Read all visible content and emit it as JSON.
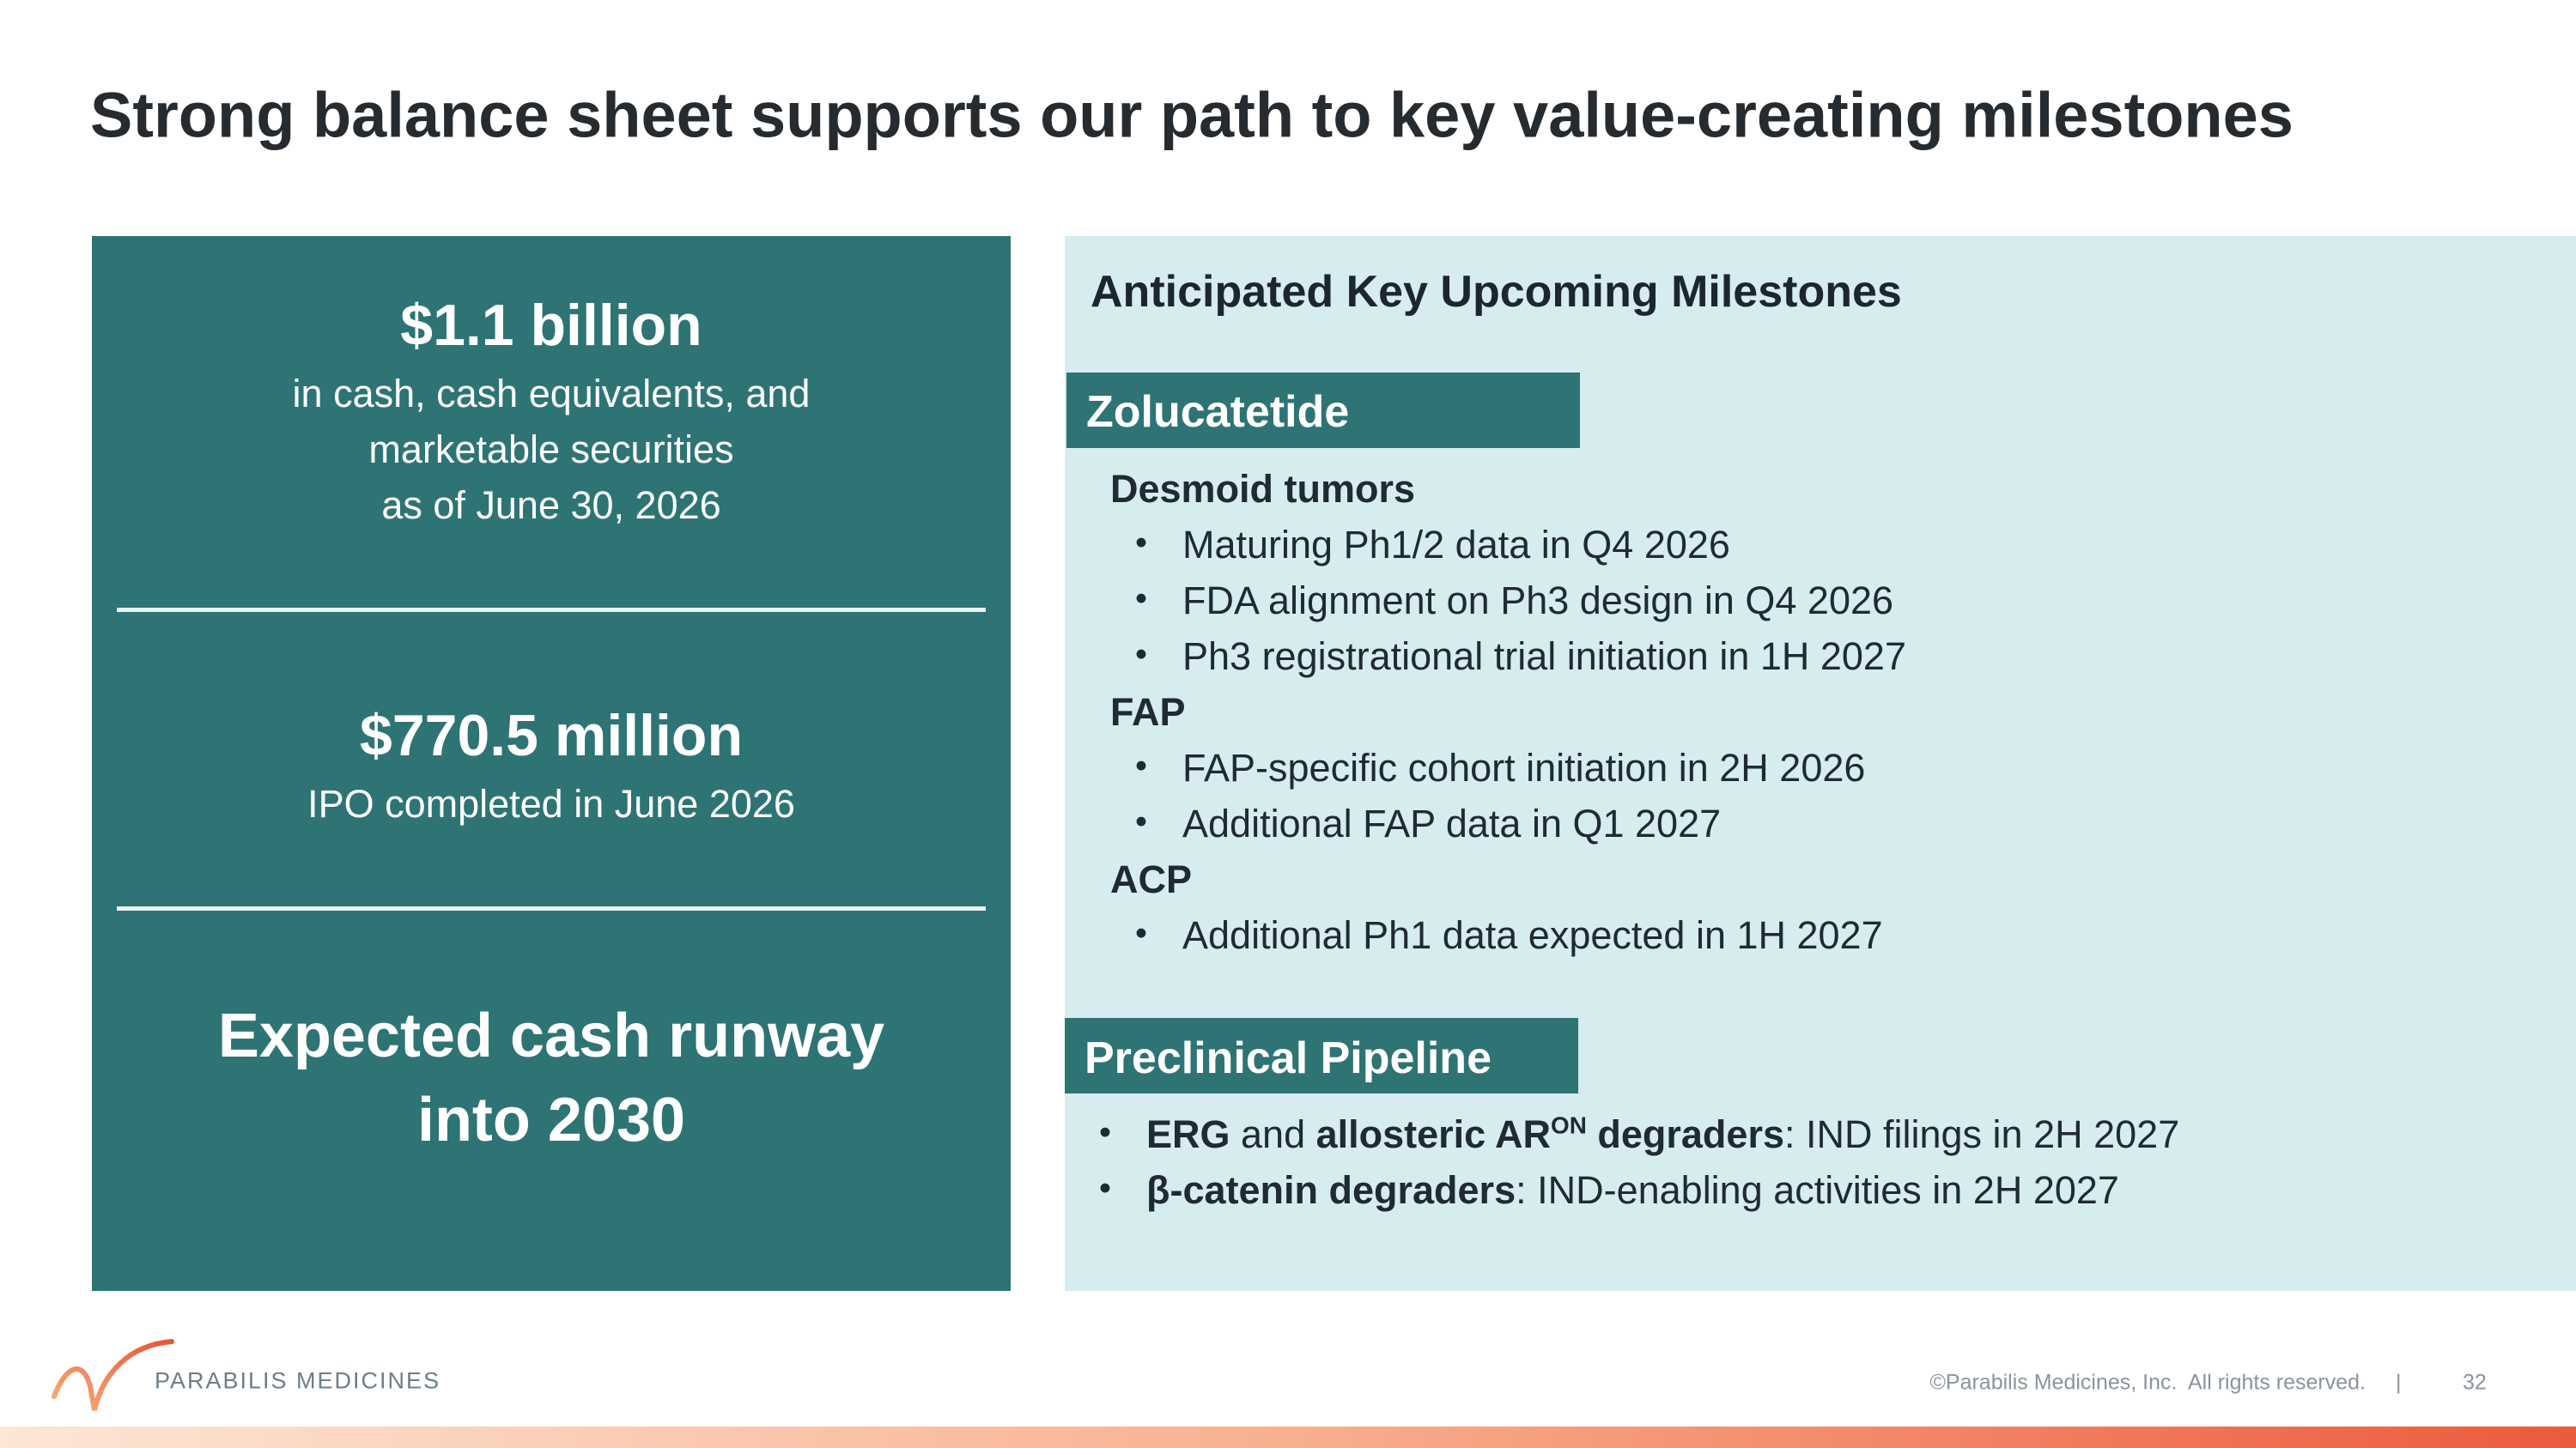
{
  "header": {
    "title": "Strong balance sheet supports our path to key value-creating milestones"
  },
  "summary": {
    "cash": {
      "value": "$1.1 billion",
      "lines": [
        "in cash, cash equivalents, and",
        "marketable securities",
        "as of June 30, 2026"
      ]
    },
    "ipo": {
      "value": "$770.5 million",
      "lines": [
        "IPO completed in June 2026"
      ]
    },
    "runway": {
      "lines": [
        "Expected cash runway",
        "into 2030"
      ]
    }
  },
  "milestones": {
    "heading": "Anticipated Key Upcoming Milestones",
    "zolucatetide": {
      "title": "Zolucatetide",
      "groups": [
        {
          "indication": "Desmoid tumors",
          "items": [
            "Maturing Ph1/2 data in Q4 2026",
            "FDA alignment on Ph3 design in Q4 2026",
            "Ph3 registrational trial initiation in 1H 2027"
          ]
        },
        {
          "indication": "FAP",
          "items": [
            "FAP-specific cohort initiation in 2H 2026",
            "Additional FAP data in Q1 2027"
          ]
        },
        {
          "indication": "ACP",
          "items": [
            "Additional Ph1 data expected in 1H 2027"
          ]
        }
      ]
    },
    "preclinical": {
      "title": "Preclinical Pipeline",
      "items": [
        [
          "ERG",
          " and ",
          "allosteric AR",
          "ON",
          " degraders",
          ": IND filings in 2H 2027"
        ],
        [
          "β-catenin degraders",
          ": IND-enabling activities in 2H 2027"
        ]
      ]
    }
  },
  "footer": {
    "logo": "PARABILIS MEDICINES",
    "copyright": "©Parabilis Medicines, Inc.  All rights reserved.",
    "separator": "|",
    "page": "32"
  }
}
